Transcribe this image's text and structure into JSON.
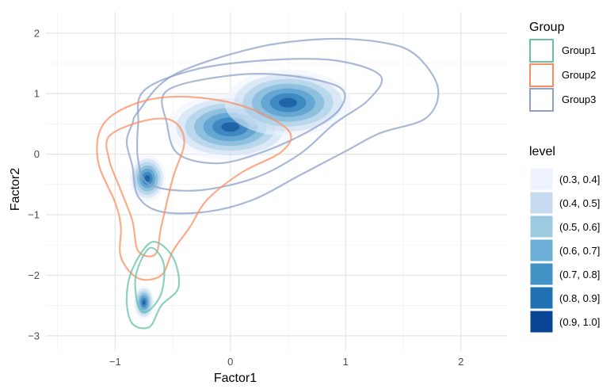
{
  "chart_data": {
    "type": "density-contour",
    "xlabel": "Factor1",
    "ylabel": "Factor2",
    "xlim": [
      -1.6,
      2.4
    ],
    "ylim": [
      -3.25,
      2.35
    ],
    "x_ticks": [
      {
        "value": -1,
        "label": "−1"
      },
      {
        "value": 0,
        "label": "0"
      },
      {
        "value": 1,
        "label": "1"
      },
      {
        "value": 2,
        "label": "2"
      }
    ],
    "y_ticks": [
      {
        "value": 2,
        "label": "2"
      },
      {
        "value": 1,
        "label": "1"
      },
      {
        "value": 0,
        "label": "0"
      },
      {
        "value": -1,
        "label": "−1"
      },
      {
        "value": -2,
        "label": "−2"
      },
      {
        "value": -3,
        "label": "−3"
      }
    ],
    "grid": true,
    "legend_position": "right",
    "group_legend": {
      "title": "Group",
      "items": [
        {
          "name": "Group1",
          "color": "#66c2a5"
        },
        {
          "name": "Group2",
          "color": "#fc8d62"
        },
        {
          "name": "Group3",
          "color": "#8da0cb"
        }
      ]
    },
    "level_legend": {
      "title": "level",
      "items": [
        {
          "label": "(0.3, 0.4]",
          "color": "#eff3ff"
        },
        {
          "label": "(0.4, 0.5]",
          "color": "#c6dbef"
        },
        {
          "label": "(0.5, 0.6]",
          "color": "#9ecae1"
        },
        {
          "label": "(0.6, 0.7]",
          "color": "#6baed6"
        },
        {
          "label": "(0.7, 0.8]",
          "color": "#4292c6"
        },
        {
          "label": "(0.8, 0.9]",
          "color": "#2171b5"
        },
        {
          "label": "(0.9, 1.0]",
          "color": "#084594"
        }
      ]
    },
    "series": [
      {
        "name": "Group3",
        "color": "#8da0cb",
        "peaks": [
          {
            "x": 0.0,
            "y": 0.45
          },
          {
            "x": 0.5,
            "y": 0.85
          }
        ],
        "contours": [
          [
            [
              -0.8,
              0.7
            ],
            [
              -0.5,
              1.3
            ],
            [
              0.2,
              1.75
            ],
            [
              0.8,
              1.9
            ],
            [
              1.3,
              1.85
            ],
            [
              1.6,
              1.65
            ],
            [
              1.8,
              1.1
            ],
            [
              1.7,
              0.6
            ],
            [
              1.3,
              0.35
            ],
            [
              1.0,
              0.05
            ],
            [
              0.6,
              -0.35
            ],
            [
              0.2,
              -0.75
            ],
            [
              -0.2,
              -0.95
            ],
            [
              -0.6,
              -0.95
            ],
            [
              -0.8,
              -0.7
            ],
            [
              -0.85,
              -0.2
            ],
            [
              -0.9,
              0.2
            ],
            [
              -0.85,
              0.5
            ]
          ],
          [
            [
              -0.75,
              1.05
            ],
            [
              -0.3,
              1.4
            ],
            [
              0.3,
              1.55
            ],
            [
              0.9,
              1.55
            ],
            [
              1.3,
              1.3
            ],
            [
              1.2,
              0.9
            ],
            [
              0.9,
              0.5
            ],
            [
              0.6,
              0.0
            ],
            [
              0.2,
              -0.4
            ],
            [
              -0.3,
              -0.6
            ],
            [
              -0.7,
              -0.5
            ],
            [
              -0.8,
              -0.1
            ],
            [
              -0.8,
              0.5
            ]
          ],
          [
            [
              -0.55,
              1.05
            ],
            [
              0.0,
              1.3
            ],
            [
              0.5,
              1.3
            ],
            [
              0.95,
              1.1
            ],
            [
              0.95,
              0.75
            ],
            [
              0.7,
              0.4
            ],
            [
              0.3,
              0.05
            ],
            [
              -0.1,
              -0.15
            ],
            [
              -0.45,
              0.0
            ],
            [
              -0.55,
              0.5
            ]
          ]
        ]
      },
      {
        "name": "Group2",
        "color": "#fc8d62",
        "peaks": [
          {
            "x": -0.72,
            "y": -0.4
          }
        ],
        "contours": [
          [
            [
              -1.1,
              0.5
            ],
            [
              -0.8,
              0.85
            ],
            [
              -0.4,
              0.95
            ],
            [
              0.1,
              0.8
            ],
            [
              0.5,
              0.4
            ],
            [
              0.45,
              0.05
            ],
            [
              0.1,
              -0.3
            ],
            [
              -0.2,
              -0.75
            ],
            [
              -0.35,
              -1.2
            ],
            [
              -0.5,
              -1.6
            ],
            [
              -0.6,
              -2.0
            ],
            [
              -0.8,
              -2.05
            ],
            [
              -0.95,
              -1.7
            ],
            [
              -0.95,
              -1.2
            ],
            [
              -1.0,
              -0.8
            ],
            [
              -1.15,
              -0.1
            ]
          ],
          [
            [
              -1.05,
              0.3
            ],
            [
              -0.75,
              0.55
            ],
            [
              -0.5,
              0.55
            ],
            [
              -0.4,
              0.2
            ],
            [
              -0.5,
              -0.4
            ],
            [
              -0.6,
              -1.2
            ],
            [
              -0.65,
              -1.65
            ],
            [
              -0.8,
              -1.6
            ],
            [
              -0.85,
              -1.1
            ],
            [
              -0.95,
              -0.6
            ],
            [
              -1.05,
              -0.1
            ]
          ]
        ]
      },
      {
        "name": "Group1",
        "color": "#66c2a5",
        "peaks": [
          {
            "x": -0.75,
            "y": -2.45
          }
        ],
        "contours": [
          [
            [
              -0.68,
              -1.45
            ],
            [
              -0.5,
              -1.7
            ],
            [
              -0.45,
              -2.2
            ],
            [
              -0.6,
              -2.5
            ],
            [
              -0.7,
              -2.85
            ],
            [
              -0.85,
              -2.8
            ],
            [
              -0.9,
              -2.4
            ],
            [
              -0.85,
              -1.9
            ]
          ],
          [
            [
              -0.7,
              -1.55
            ],
            [
              -0.58,
              -1.8
            ],
            [
              -0.6,
              -2.3
            ],
            [
              -0.72,
              -2.6
            ],
            [
              -0.8,
              -2.5
            ],
            [
              -0.82,
              -2.0
            ]
          ]
        ]
      }
    ]
  }
}
